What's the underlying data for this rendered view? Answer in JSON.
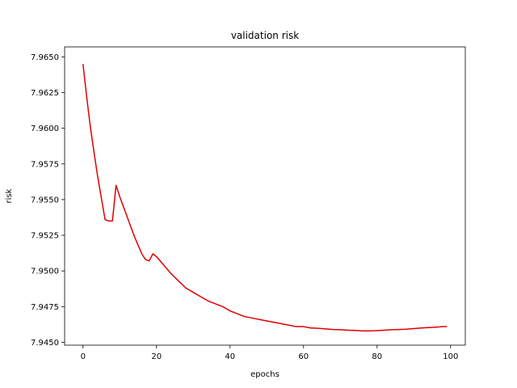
{
  "chart_data": {
    "type": "line",
    "title": "validation risk",
    "xlabel": "epochs",
    "ylabel": "risk",
    "xlim": [
      -5,
      104
    ],
    "ylim": [
      7.9448,
      7.9657
    ],
    "xticks": [
      0,
      20,
      40,
      60,
      80,
      100
    ],
    "xtick_labels": [
      "0",
      "20",
      "40",
      "60",
      "80",
      "100"
    ],
    "yticks": [
      7.945,
      7.9475,
      7.95,
      7.9525,
      7.955,
      7.9575,
      7.96,
      7.9625,
      7.965
    ],
    "ytick_labels": [
      "7.9450",
      "7.9475",
      "7.9500",
      "7.9525",
      "7.9550",
      "7.9575",
      "7.9600",
      "7.9625",
      "7.9650"
    ],
    "grid": false,
    "series": [
      {
        "color": "#e00000",
        "x": [
          0,
          1,
          2,
          3,
          4,
          5,
          6,
          7,
          8,
          9,
          10,
          11,
          12,
          13,
          14,
          15,
          16,
          17,
          18,
          19,
          20,
          22,
          24,
          26,
          28,
          30,
          32,
          34,
          36,
          38,
          40,
          42,
          44,
          46,
          48,
          50,
          52,
          54,
          56,
          58,
          60,
          62,
          64,
          66,
          68,
          70,
          72,
          74,
          76,
          78,
          80,
          82,
          84,
          86,
          88,
          90,
          92,
          94,
          96,
          98,
          99
        ],
        "y": [
          7.9645,
          7.9622,
          7.9601,
          7.9583,
          7.9566,
          7.9551,
          7.9536,
          7.9535,
          7.9535,
          7.956,
          7.9552,
          7.9545,
          7.9538,
          7.9531,
          7.9524,
          7.9518,
          7.9512,
          7.9508,
          7.9507,
          7.9512,
          7.951,
          7.9504,
          7.9498,
          7.9493,
          7.9488,
          7.9485,
          7.9482,
          7.9479,
          7.9477,
          7.9475,
          7.9472,
          7.947,
          7.9468,
          7.9467,
          7.9466,
          7.9465,
          7.9464,
          7.9463,
          7.9462,
          7.9461,
          7.9461,
          7.946,
          7.94598,
          7.94594,
          7.9459,
          7.94588,
          7.94585,
          7.94583,
          7.9458,
          7.9458,
          7.94582,
          7.94585,
          7.94588,
          7.9459,
          7.94592,
          7.94596,
          7.946,
          7.94603,
          7.94606,
          7.9461,
          7.9461
        ]
      }
    ]
  }
}
